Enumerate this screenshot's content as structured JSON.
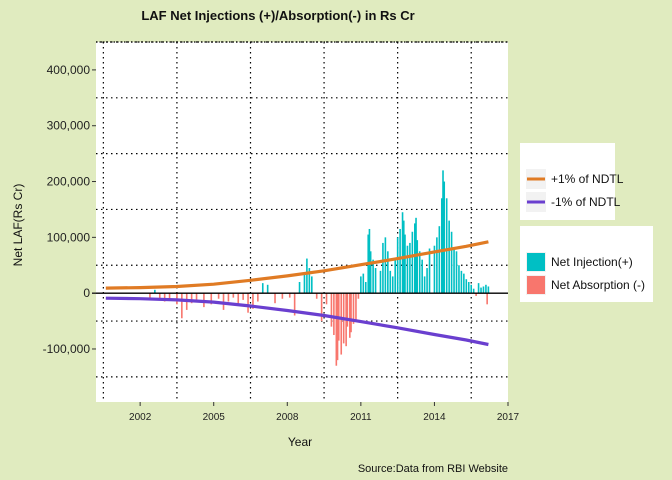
{
  "chart_data": {
    "type": "bar",
    "title": "LAF Net Injections (+)/Absorption(-) in Rs Cr",
    "xlabel": "Year",
    "ylabel": "Net LAF(Rs Cr)",
    "caption": "Source:Data from RBI Website",
    "xlim": [
      2000.2,
      2017
    ],
    "ylim": [
      -195000,
      450000
    ],
    "x_ticks": [
      2002,
      2005,
      2008,
      2011,
      2014,
      2017
    ],
    "x_tick_labels": [
      "2002",
      "2005",
      "2008",
      "2011",
      "2014",
      "2017"
    ],
    "y_ticks": [
      -100000,
      0,
      100000,
      200000,
      300000,
      400000
    ],
    "y_tick_labels": [
      "-100,000",
      "0",
      "100,000",
      "200,000",
      "300,000",
      "400,000"
    ],
    "grid": "dotted",
    "colors": {
      "injection": "#00bfc4",
      "absorption": "#f8766d",
      "plus_ndtl": "#e07b24",
      "minus_ndtl": "#6a3fcf",
      "zero_line": "#000000",
      "panel_bg": "#ffffff",
      "plot_bg": "#e0ebbf"
    },
    "legend": [
      {
        "title": "",
        "placement": "right",
        "items": [
          {
            "label": "+1% of NDTL",
            "type": "line",
            "color": "#e07b24"
          },
          {
            "label": "-1% of NDTL",
            "type": "line",
            "color": "#6a3fcf"
          }
        ]
      },
      {
        "title": "",
        "placement": "right",
        "items": [
          {
            "label": "Net Injection(+)",
            "type": "fill",
            "color": "#00bfc4"
          },
          {
            "label": "Net Absorption (-)",
            "type": "fill",
            "color": "#f8766d"
          }
        ]
      }
    ],
    "series": [
      {
        "name": "+1% of NDTL",
        "type": "line",
        "points": [
          [
            2000.6,
            9000
          ],
          [
            2002,
            10000
          ],
          [
            2003.5,
            12000
          ],
          [
            2005,
            16000
          ],
          [
            2006.5,
            23000
          ],
          [
            2008,
            31000
          ],
          [
            2009.5,
            40000
          ],
          [
            2011,
            51000
          ],
          [
            2012.5,
            62000
          ],
          [
            2014,
            74000
          ],
          [
            2015.3,
            84000
          ],
          [
            2016.2,
            92000
          ]
        ]
      },
      {
        "name": "-1% of NDTL",
        "type": "line",
        "points": [
          [
            2000.6,
            -9000
          ],
          [
            2002,
            -10000
          ],
          [
            2003.5,
            -12000
          ],
          [
            2005,
            -16000
          ],
          [
            2006.5,
            -23000
          ],
          [
            2008,
            -31000
          ],
          [
            2009.5,
            -40000
          ],
          [
            2011,
            -51000
          ],
          [
            2012.5,
            -62000
          ],
          [
            2014,
            -74000
          ],
          [
            2015.3,
            -84000
          ],
          [
            2016.2,
            -92000
          ]
        ]
      },
      {
        "name": "Net LAF",
        "type": "bar",
        "points": [
          [
            2002.4,
            -8000
          ],
          [
            2002.6,
            6000
          ],
          [
            2002.8,
            -12000
          ],
          [
            2003.0,
            -15000
          ],
          [
            2003.2,
            -10000
          ],
          [
            2003.5,
            -20000
          ],
          [
            2003.7,
            -45000
          ],
          [
            2003.9,
            -30000
          ],
          [
            2004.1,
            -18000
          ],
          [
            2004.3,
            -12000
          ],
          [
            2004.6,
            -25000
          ],
          [
            2004.9,
            -20000
          ],
          [
            2005.2,
            -10000
          ],
          [
            2005.4,
            -30000
          ],
          [
            2005.6,
            -15000
          ],
          [
            2005.8,
            -8000
          ],
          [
            2006.0,
            -20000
          ],
          [
            2006.2,
            -12000
          ],
          [
            2006.4,
            -35000
          ],
          [
            2006.6,
            -28000
          ],
          [
            2006.8,
            -15000
          ],
          [
            2007.0,
            18000
          ],
          [
            2007.2,
            15000
          ],
          [
            2007.5,
            -18000
          ],
          [
            2007.8,
            -10000
          ],
          [
            2008.1,
            -8000
          ],
          [
            2008.3,
            -40000
          ],
          [
            2008.5,
            20000
          ],
          [
            2008.7,
            35000
          ],
          [
            2008.8,
            62000
          ],
          [
            2008.9,
            45000
          ],
          [
            2009.0,
            30000
          ],
          [
            2009.2,
            -10000
          ],
          [
            2009.4,
            -50000
          ],
          [
            2009.6,
            -20000
          ],
          [
            2009.8,
            -60000
          ],
          [
            2009.9,
            -75000
          ],
          [
            2010.0,
            -130000
          ],
          [
            2010.05,
            -120000
          ],
          [
            2010.1,
            -85000
          ],
          [
            2010.2,
            -110000
          ],
          [
            2010.3,
            -90000
          ],
          [
            2010.4,
            -95000
          ],
          [
            2010.45,
            -60000
          ],
          [
            2010.55,
            -80000
          ],
          [
            2010.6,
            -70000
          ],
          [
            2010.7,
            -55000
          ],
          [
            2010.8,
            -50000
          ],
          [
            2010.9,
            -10000
          ],
          [
            2011.0,
            30000
          ],
          [
            2011.1,
            35000
          ],
          [
            2011.2,
            20000
          ],
          [
            2011.3,
            105000
          ],
          [
            2011.35,
            115000
          ],
          [
            2011.4,
            75000
          ],
          [
            2011.5,
            60000
          ],
          [
            2011.6,
            45000
          ],
          [
            2011.8,
            40000
          ],
          [
            2011.9,
            90000
          ],
          [
            2012.0,
            100000
          ],
          [
            2012.1,
            75000
          ],
          [
            2012.2,
            40000
          ],
          [
            2012.3,
            30000
          ],
          [
            2012.4,
            60000
          ],
          [
            2012.5,
            100000
          ],
          [
            2012.6,
            115000
          ],
          [
            2012.7,
            145000
          ],
          [
            2012.75,
            130000
          ],
          [
            2012.8,
            105000
          ],
          [
            2012.9,
            85000
          ],
          [
            2013.0,
            90000
          ],
          [
            2013.1,
            110000
          ],
          [
            2013.2,
            125000
          ],
          [
            2013.25,
            135000
          ],
          [
            2013.3,
            95000
          ],
          [
            2013.4,
            75000
          ],
          [
            2013.5,
            60000
          ],
          [
            2013.6,
            30000
          ],
          [
            2013.7,
            45000
          ],
          [
            2013.8,
            80000
          ],
          [
            2014.0,
            85000
          ],
          [
            2014.1,
            100000
          ],
          [
            2014.2,
            120000
          ],
          [
            2014.3,
            170000
          ],
          [
            2014.35,
            220000
          ],
          [
            2014.4,
            200000
          ],
          [
            2014.5,
            170000
          ],
          [
            2014.6,
            130000
          ],
          [
            2014.7,
            110000
          ],
          [
            2014.8,
            80000
          ],
          [
            2014.9,
            75000
          ],
          [
            2015.0,
            50000
          ],
          [
            2015.1,
            40000
          ],
          [
            2015.2,
            35000
          ],
          [
            2015.3,
            25000
          ],
          [
            2015.4,
            20000
          ],
          [
            2015.5,
            15000
          ],
          [
            2015.6,
            8000
          ],
          [
            2015.7,
            -5000
          ],
          [
            2015.8,
            18000
          ],
          [
            2015.9,
            10000
          ],
          [
            2016.0,
            12000
          ],
          [
            2016.1,
            15000
          ],
          [
            2016.15,
            -20000
          ],
          [
            2016.2,
            12000
          ]
        ]
      }
    ]
  }
}
